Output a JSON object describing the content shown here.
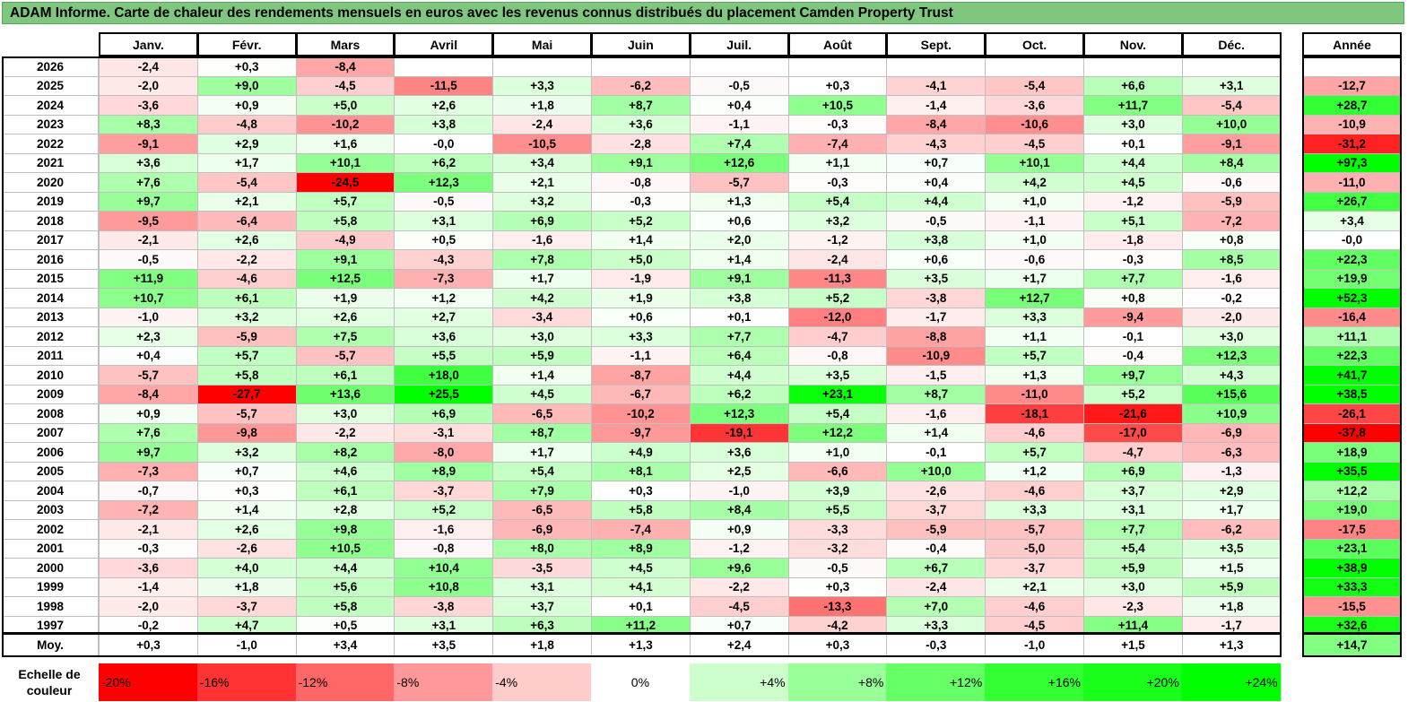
{
  "title": "ADAM Informe. Carte de chaleur des rendements mensuels en euros avec les revenus connus distribués du placement Camden Property Trust",
  "chart_data": {
    "type": "heatmap",
    "title": "ADAM Informe. Carte de chaleur des rendements mensuels en euros avec les revenus connus distribués du placement Camden Property Trust",
    "columns": [
      "Janv.",
      "Févr.",
      "Mars",
      "Avril",
      "Mai",
      "Juin",
      "Juil.",
      "Août",
      "Sept.",
      "Oct.",
      "Nov.",
      "Déc."
    ],
    "year_column": "Année",
    "rows": [
      {
        "year": "2026",
        "values": [
          "-2,4",
          "+0,3",
          "-8,4",
          "",
          "",
          "",
          "",
          "",
          "",
          "",
          "",
          ""
        ],
        "annual": ""
      },
      {
        "year": "2025",
        "values": [
          "-2,0",
          "+9,0",
          "-4,5",
          "-11,5",
          "+3,3",
          "-6,2",
          "-0,5",
          "+0,3",
          "-4,1",
          "-5,4",
          "+6,6",
          "+3,1"
        ],
        "annual": "-12,7"
      },
      {
        "year": "2024",
        "values": [
          "-3,6",
          "+0,9",
          "+5,0",
          "+2,6",
          "+1,8",
          "+8,7",
          "+0,4",
          "+10,5",
          "-1,4",
          "-3,6",
          "+11,7",
          "-5,4"
        ],
        "annual": "+28,7"
      },
      {
        "year": "2023",
        "values": [
          "+8,3",
          "-4,8",
          "-10,2",
          "+3,8",
          "-2,4",
          "+3,6",
          "-1,1",
          "-0,3",
          "-8,4",
          "-10,6",
          "+3,0",
          "+10,0"
        ],
        "annual": "-10,9"
      },
      {
        "year": "2022",
        "values": [
          "-9,1",
          "+2,9",
          "+1,6",
          "-0,0",
          "-10,5",
          "-2,8",
          "+7,4",
          "-7,4",
          "-4,3",
          "-4,5",
          "+0,1",
          "-9,1"
        ],
        "annual": "-31,2"
      },
      {
        "year": "2021",
        "values": [
          "+3,6",
          "+1,7",
          "+10,1",
          "+6,2",
          "+3,4",
          "+9,1",
          "+12,6",
          "+1,1",
          "+0,7",
          "+10,1",
          "+4,4",
          "+8,4"
        ],
        "annual": "+97,3"
      },
      {
        "year": "2020",
        "values": [
          "+7,6",
          "-5,4",
          "-24,5",
          "+12,3",
          "+2,1",
          "-0,8",
          "-5,7",
          "-0,3",
          "+0,4",
          "+4,2",
          "+4,5",
          "-0,6"
        ],
        "annual": "-11,0"
      },
      {
        "year": "2019",
        "values": [
          "+9,7",
          "+2,1",
          "+5,7",
          "-0,5",
          "+3,2",
          "-0,3",
          "+1,3",
          "+5,4",
          "+4,4",
          "+1,0",
          "-1,2",
          "-5,9"
        ],
        "annual": "+26,7"
      },
      {
        "year": "2018",
        "values": [
          "-9,5",
          "-6,4",
          "+5,8",
          "+3,1",
          "+6,9",
          "+5,2",
          "+0,6",
          "+3,2",
          "-0,5",
          "-1,1",
          "+5,1",
          "-7,2"
        ],
        "annual": "+3,4"
      },
      {
        "year": "2017",
        "values": [
          "-2,1",
          "+2,6",
          "-4,9",
          "+0,5",
          "-1,6",
          "+1,4",
          "+2,0",
          "-1,2",
          "+3,8",
          "+1,0",
          "-1,8",
          "+0,8"
        ],
        "annual": "-0,0"
      },
      {
        "year": "2016",
        "values": [
          "-0,5",
          "-2,2",
          "+9,1",
          "-4,3",
          "+7,8",
          "+5,0",
          "+1,4",
          "-2,4",
          "+0,6",
          "-0,6",
          "-0,3",
          "+8,5"
        ],
        "annual": "+22,3"
      },
      {
        "year": "2015",
        "values": [
          "+11,9",
          "-4,6",
          "+12,5",
          "-7,3",
          "+1,7",
          "-1,9",
          "+9,1",
          "-11,3",
          "+3,5",
          "+1,7",
          "+7,7",
          "-1,6"
        ],
        "annual": "+19,9"
      },
      {
        "year": "2014",
        "values": [
          "+10,7",
          "+6,1",
          "+1,9",
          "+1,2",
          "+4,2",
          "+1,9",
          "+3,8",
          "+5,2",
          "-3,8",
          "+12,7",
          "+0,8",
          "-0,2"
        ],
        "annual": "+52,3"
      },
      {
        "year": "2013",
        "values": [
          "-1,0",
          "+3,2",
          "+2,6",
          "+2,7",
          "-3,4",
          "+0,6",
          "+0,1",
          "-12,0",
          "-1,7",
          "+3,3",
          "-9,4",
          "-2,0"
        ],
        "annual": "-16,4"
      },
      {
        "year": "2012",
        "values": [
          "+2,3",
          "-5,9",
          "+7,5",
          "+3,6",
          "+3,0",
          "+3,3",
          "+7,7",
          "-4,7",
          "-8,8",
          "+1,1",
          "-0,1",
          "+3,0"
        ],
        "annual": "+11,1"
      },
      {
        "year": "2011",
        "values": [
          "+0,4",
          "+5,7",
          "-5,7",
          "+5,5",
          "+5,9",
          "-1,1",
          "+6,4",
          "-0,8",
          "-10,9",
          "+5,7",
          "-0,4",
          "+12,3"
        ],
        "annual": "+22,3"
      },
      {
        "year": "2010",
        "values": [
          "-5,7",
          "+5,8",
          "+6,1",
          "+18,0",
          "+1,4",
          "-8,7",
          "+4,4",
          "+3,5",
          "-1,5",
          "+1,3",
          "+9,7",
          "+4,3"
        ],
        "annual": "+41,7"
      },
      {
        "year": "2009",
        "values": [
          "-8,4",
          "-27,7",
          "+13,6",
          "+25,5",
          "+4,5",
          "-6,7",
          "+6,2",
          "+23,1",
          "+8,7",
          "-11,0",
          "+5,2",
          "+15,6"
        ],
        "annual": "+38,5"
      },
      {
        "year": "2008",
        "values": [
          "+0,9",
          "-5,7",
          "+3,0",
          "+6,9",
          "-6,5",
          "-10,2",
          "+12,3",
          "+5,4",
          "-1,6",
          "-18,1",
          "-21,6",
          "+10,9"
        ],
        "annual": "-26,1"
      },
      {
        "year": "2007",
        "values": [
          "+7,6",
          "-9,8",
          "-2,2",
          "-3,1",
          "+8,7",
          "-9,7",
          "-19,1",
          "+12,2",
          "+1,4",
          "-4,6",
          "-17,0",
          "-6,9"
        ],
        "annual": "-37,8"
      },
      {
        "year": "2006",
        "values": [
          "+9,7",
          "+3,2",
          "+8,2",
          "-8,0",
          "+1,7",
          "+4,9",
          "+3,6",
          "+1,0",
          "-0,1",
          "+5,7",
          "-4,7",
          "-6,3"
        ],
        "annual": "+18,9"
      },
      {
        "year": "2005",
        "values": [
          "-7,3",
          "+0,7",
          "+4,6",
          "+8,9",
          "+5,4",
          "+8,1",
          "+2,5",
          "-6,6",
          "+10,0",
          "+1,2",
          "+6,9",
          "-1,3"
        ],
        "annual": "+35,5"
      },
      {
        "year": "2004",
        "values": [
          "-0,7",
          "+0,3",
          "+6,1",
          "-3,7",
          "+7,9",
          "+0,3",
          "-1,0",
          "+3,9",
          "-2,6",
          "-4,6",
          "+3,7",
          "+2,9"
        ],
        "annual": "+12,2"
      },
      {
        "year": "2003",
        "values": [
          "-7,2",
          "+1,4",
          "+2,8",
          "+5,2",
          "-6,5",
          "+5,8",
          "+8,4",
          "+5,5",
          "-3,7",
          "+3,3",
          "+3,1",
          "+1,7"
        ],
        "annual": "+19,0"
      },
      {
        "year": "2002",
        "values": [
          "-2,1",
          "+2,6",
          "+9,8",
          "-1,6",
          "-6,9",
          "-7,4",
          "+0,9",
          "-3,3",
          "-5,9",
          "-5,7",
          "+7,7",
          "-6,2"
        ],
        "annual": "-17,5"
      },
      {
        "year": "2001",
        "values": [
          "-0,3",
          "-2,6",
          "+10,5",
          "-0,8",
          "+8,0",
          "+8,9",
          "-1,2",
          "-3,2",
          "-0,4",
          "-5,0",
          "+5,4",
          "+3,5"
        ],
        "annual": "+23,1"
      },
      {
        "year": "2000",
        "values": [
          "-3,6",
          "+4,0",
          "+4,4",
          "+10,4",
          "-3,5",
          "+4,5",
          "+9,6",
          "-0,5",
          "+6,7",
          "-3,7",
          "+5,9",
          "+1,5"
        ],
        "annual": "+38,9"
      },
      {
        "year": "1999",
        "values": [
          "-1,4",
          "+1,8",
          "+5,6",
          "+10,8",
          "+3,1",
          "+4,1",
          "-2,2",
          "+0,3",
          "-2,4",
          "+2,1",
          "+3,0",
          "+5,9"
        ],
        "annual": "+33,3"
      },
      {
        "year": "1998",
        "values": [
          "-2,0",
          "-3,7",
          "+5,8",
          "-3,8",
          "+3,7",
          "+0,1",
          "-4,5",
          "-13,3",
          "+7,0",
          "-4,6",
          "-2,3",
          "+1,8"
        ],
        "annual": "-15,5"
      },
      {
        "year": "1997",
        "values": [
          "-0,2",
          "+4,7",
          "+0,5",
          "+3,1",
          "+6,3",
          "+11,2",
          "+0,7",
          "-4,2",
          "+3,3",
          "-4,5",
          "+11,4",
          "-1,7"
        ],
        "annual": "+32,6"
      }
    ],
    "average": {
      "label": "Moy.",
      "values": [
        "+0,3",
        "-1,0",
        "+3,4",
        "+3,5",
        "+1,8",
        "+1,3",
        "+2,4",
        "+0,3",
        "-0,3",
        "-1,0",
        "+1,5",
        "+1,3"
      ],
      "annual": "+14,7"
    },
    "legend": {
      "label_line1": "Echelle de",
      "label_line2": "couleur",
      "items": [
        {
          "label": "-20%",
          "color": "#ff0000",
          "align": "left"
        },
        {
          "label": "-16%",
          "color": "#ff3333",
          "align": "left"
        },
        {
          "label": "-12%",
          "color": "#ff6666",
          "align": "left"
        },
        {
          "label": "-8%",
          "color": "#ff9999",
          "align": "left"
        },
        {
          "label": "-4%",
          "color": "#ffcccc",
          "align": "left"
        },
        {
          "label": "0%",
          "color": "#ffffff",
          "align": "center"
        },
        {
          "label": "+4%",
          "color": "#ccffcc",
          "align": "right"
        },
        {
          "label": "+8%",
          "color": "#99ff99",
          "align": "right"
        },
        {
          "label": "+12%",
          "color": "#66ff66",
          "align": "right"
        },
        {
          "label": "+16%",
          "color": "#33ff33",
          "align": "right"
        },
        {
          "label": "+20%",
          "color": "#1aff1a",
          "align": "right"
        },
        {
          "label": "+24%",
          "color": "#00ff00",
          "align": "right"
        }
      ]
    }
  }
}
